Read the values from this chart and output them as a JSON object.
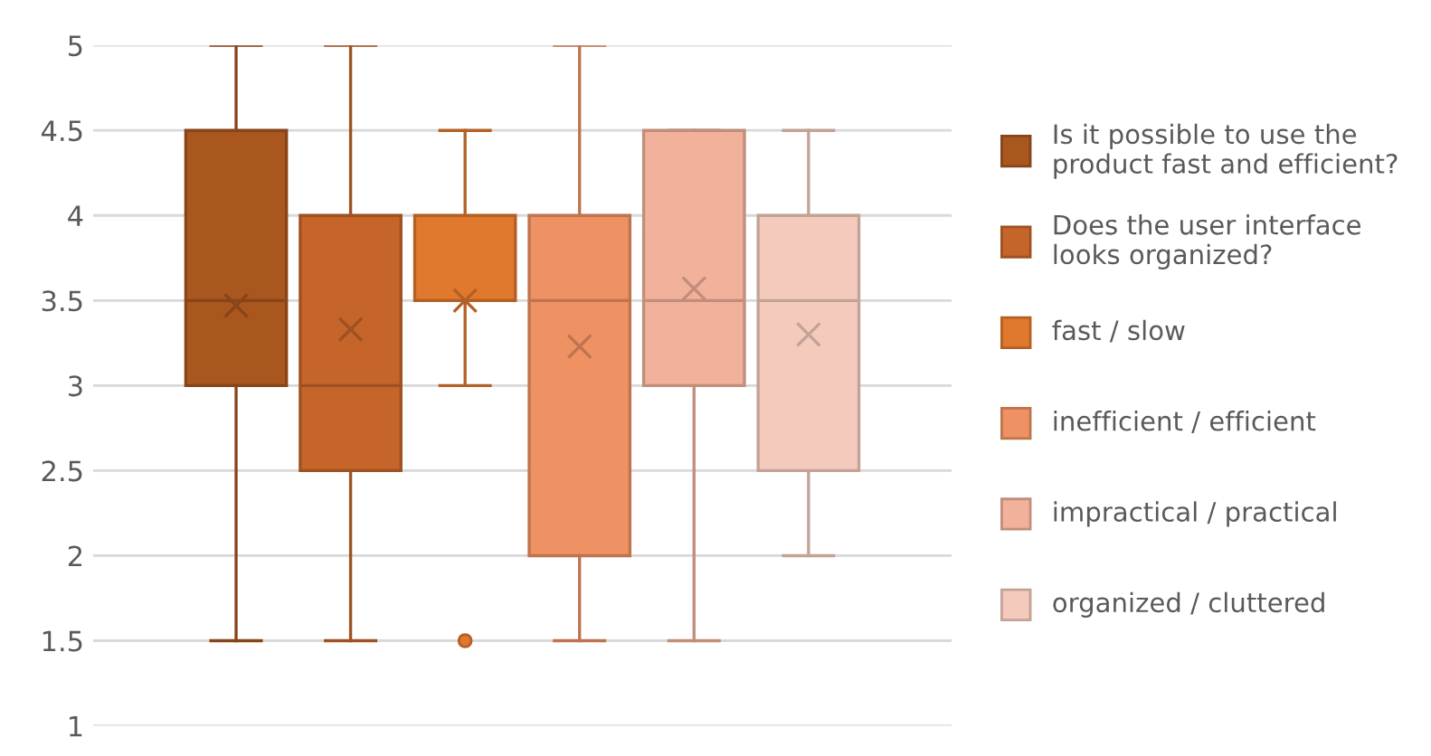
{
  "chart_data": {
    "type": "box",
    "categories": [
      null
    ],
    "series": [
      {
        "name": "Is it possible to use the product fast and efficient?",
        "color": "#a9561f",
        "boxes": [
          {
            "low": 1.5,
            "q1": 3,
            "median": 3.5,
            "q3": 4.5,
            "high": 5,
            "mean": 3.47
          }
        ]
      },
      {
        "name": "Does the user interface looks organized?",
        "color": "#c6652a",
        "boxes": [
          {
            "low": 1.5,
            "q1": 2.5,
            "median": 3,
            "q3": 4,
            "high": 5,
            "mean": 3.33
          }
        ]
      },
      {
        "name": "fast / slow",
        "color": "#e0782e",
        "boxes": [
          {
            "low": 3,
            "q1": 3.5,
            "median": 3.5,
            "q3": 4,
            "high": 4.5,
            "mean": 3.5,
            "outliers": [
              1.5
            ]
          }
        ]
      },
      {
        "name": "inefficient / efficient",
        "color": "#ee9163",
        "boxes": [
          {
            "low": 1.5,
            "q1": 2,
            "median": 3.5,
            "q3": 4,
            "high": 5,
            "mean": 3.23
          }
        ]
      },
      {
        "name": "impractical / practical",
        "color": "#f1b19a",
        "boxes": [
          {
            "low": 1.5,
            "q1": 3,
            "median": 3.5,
            "q3": 4.5,
            "high": 4.5,
            "mean": 3.57
          }
        ]
      },
      {
        "name": "organized / cluttered",
        "color": "#f4cabd",
        "boxes": [
          {
            "low": 2,
            "q1": 2.5,
            "median": 3.5,
            "q3": 4,
            "high": 4.5,
            "mean": 3.3
          }
        ]
      }
    ],
    "ylim": [
      1,
      5
    ],
    "yticks": [
      1,
      1.5,
      2,
      2.5,
      3,
      3.5,
      4,
      4.5,
      5
    ],
    "grid": "y",
    "legend": "right"
  }
}
